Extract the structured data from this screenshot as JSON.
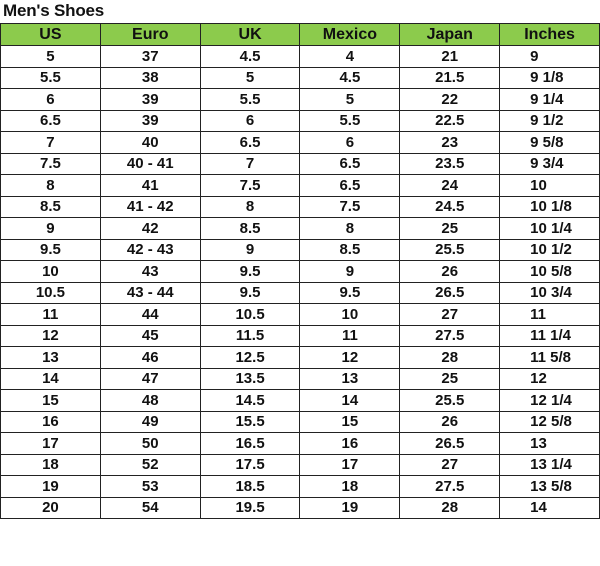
{
  "title": "Men's Shoes",
  "header_color": "#8ccb4c",
  "columns": [
    "US",
    "Euro",
    "UK",
    "Mexico",
    "Japan",
    "Inches"
  ],
  "rows": [
    [
      "5",
      "37",
      "4.5",
      "4",
      "21",
      "9"
    ],
    [
      "5.5",
      "38",
      "5",
      "4.5",
      "21.5",
      "9 1/8"
    ],
    [
      "6",
      "39",
      "5.5",
      "5",
      "22",
      "9 1/4"
    ],
    [
      "6.5",
      "39",
      "6",
      "5.5",
      "22.5",
      "9 1/2"
    ],
    [
      "7",
      "40",
      "6.5",
      "6",
      "23",
      "9 5/8"
    ],
    [
      "7.5",
      "40 - 41",
      "7",
      "6.5",
      "23.5",
      "9 3/4"
    ],
    [
      "8",
      "41",
      "7.5",
      "6.5",
      "24",
      "10"
    ],
    [
      "8.5",
      "41 - 42",
      "8",
      "7.5",
      "24.5",
      "10 1/8"
    ],
    [
      "9",
      "42",
      "8.5",
      "8",
      "25",
      "10 1/4"
    ],
    [
      "9.5",
      "42 - 43",
      "9",
      "8.5",
      "25.5",
      "10 1/2"
    ],
    [
      "10",
      "43",
      "9.5",
      "9",
      "26",
      "10 5/8"
    ],
    [
      "10.5",
      "43 - 44",
      "9.5",
      "9.5",
      "26.5",
      "10 3/4"
    ],
    [
      "11",
      "44",
      "10.5",
      "10",
      "27",
      "11"
    ],
    [
      "12",
      "45",
      "11.5",
      "11",
      "27.5",
      "11 1/4"
    ],
    [
      "13",
      "46",
      "12.5",
      "12",
      "28",
      "11 5/8"
    ],
    [
      "14",
      "47",
      "13.5",
      "13",
      "25",
      "12"
    ],
    [
      "15",
      "48",
      "14.5",
      "14",
      "25.5",
      "12 1/4"
    ],
    [
      "16",
      "49",
      "15.5",
      "15",
      "26",
      "12 5/8"
    ],
    [
      "17",
      "50",
      "16.5",
      "16",
      "26.5",
      "13"
    ],
    [
      "18",
      "52",
      "17.5",
      "17",
      "27",
      "13 1/4"
    ],
    [
      "19",
      "53",
      "18.5",
      "18",
      "27.5",
      "13 5/8"
    ],
    [
      "20",
      "54",
      "19.5",
      "19",
      "28",
      "14"
    ]
  ]
}
